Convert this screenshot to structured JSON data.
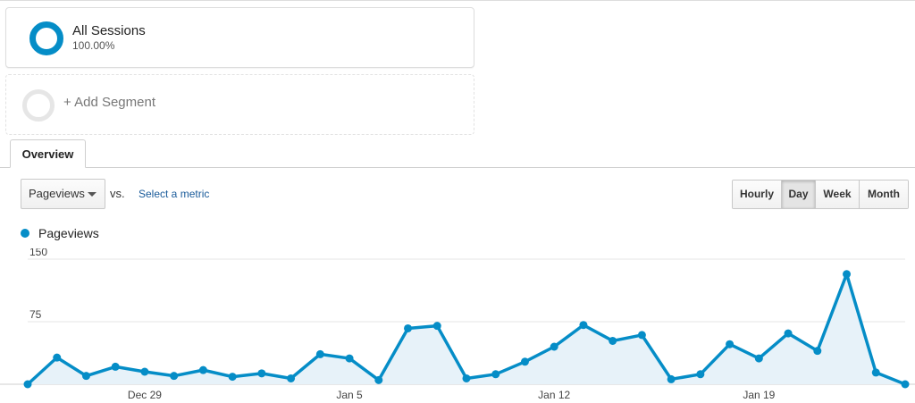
{
  "segments": {
    "active": {
      "name": "All Sessions",
      "percent": "100.00%",
      "color": "#058dc7"
    },
    "add_label": "+ Add Segment"
  },
  "tabs": {
    "overview": "Overview"
  },
  "controls": {
    "metric": "Pageviews",
    "vs": "vs.",
    "select_metric": "Select a metric",
    "periods": [
      "Hourly",
      "Day",
      "Week",
      "Month"
    ],
    "selected_period": "Day"
  },
  "chart_data": {
    "type": "area",
    "series": [
      {
        "name": "Pageviews",
        "color": "#058dc7",
        "values": [
          0,
          32,
          10,
          21,
          15,
          10,
          17,
          9,
          13,
          7,
          36,
          31,
          5,
          67,
          70,
          7,
          12,
          27,
          45,
          71,
          52,
          59,
          6,
          12,
          48,
          31,
          61,
          40,
          132,
          14,
          0
        ]
      }
    ],
    "x_tick_labels": [
      {
        "label": "Dec 29",
        "index": 4
      },
      {
        "label": "Jan 5",
        "index": 11
      },
      {
        "label": "Jan 12",
        "index": 18
      },
      {
        "label": "Jan 19",
        "index": 25
      }
    ],
    "y_ticks": [
      "150",
      "75"
    ],
    "ylim": [
      0,
      150
    ],
    "grid": true,
    "legend": "top-left"
  }
}
